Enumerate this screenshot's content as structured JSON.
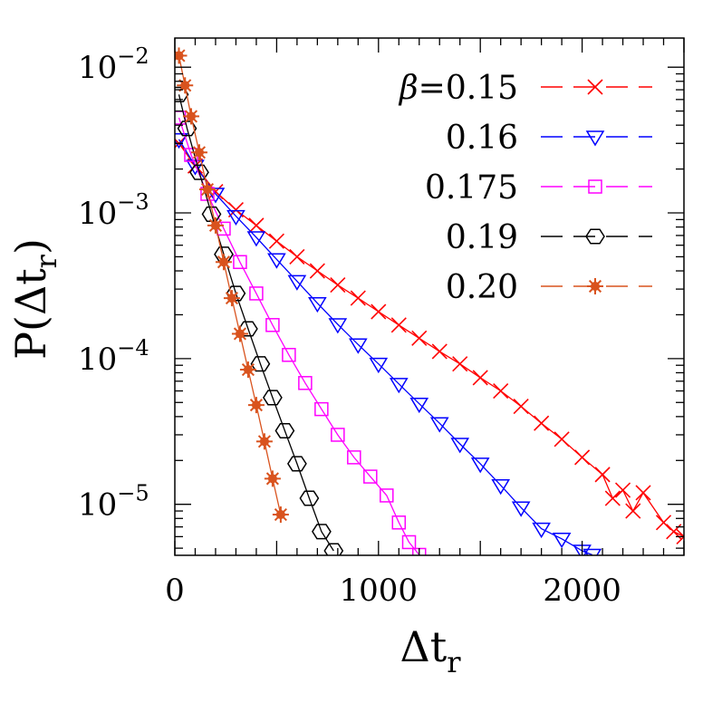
{
  "chart_data": {
    "type": "scatter",
    "xlabel": "Δt",
    "xlabel_sub": "r",
    "ylabel": "P(Δt",
    "ylabel_sub": "r",
    "ylabel_close": ")",
    "xlim": [
      0,
      2500
    ],
    "ylim_log10": [
      -5.35,
      -1.8
    ],
    "yscale": "log",
    "x_ticks": [
      {
        "value": 0,
        "label": "0"
      },
      {
        "value": 1000,
        "label": "1000"
      },
      {
        "value": 2000,
        "label": "2000"
      }
    ],
    "y_ticks": [
      {
        "exp": -2,
        "base": "10",
        "sup": "−2"
      },
      {
        "exp": -3,
        "base": "10",
        "sup": "−3"
      },
      {
        "exp": -4,
        "base": "10",
        "sup": "−4"
      },
      {
        "exp": -5,
        "base": "10",
        "sup": "−5"
      }
    ],
    "legend_position": "top-right",
    "series": [
      {
        "name": "β=0.15",
        "legend_prefix": "β",
        "legend_value": "=0.15",
        "color": "#ff0000",
        "marker": "x",
        "x": [
          20,
          100,
          200,
          300,
          400,
          500,
          600,
          700,
          800,
          900,
          1000,
          1100,
          1200,
          1300,
          1400,
          1500,
          1600,
          1700,
          1800,
          1900,
          2000,
          2100,
          2150,
          2200,
          2250,
          2300,
          2400,
          2450,
          2500
        ],
        "y": [
          0.003,
          0.0021,
          0.0014,
          0.00105,
          0.00082,
          0.00064,
          0.0005,
          0.0004,
          0.00032,
          0.00026,
          0.00021,
          0.00017,
          0.000138,
          0.000112,
          9.2e-05,
          7.4e-05,
          6e-05,
          4.7e-05,
          3.6e-05,
          2.8e-05,
          2.1e-05,
          1.6e-05,
          1.1e-05,
          1.25e-05,
          9e-06,
          1.2e-05,
          7.5e-06,
          6.5e-06,
          6e-06
        ]
      },
      {
        "name": "0.16",
        "legend_prefix": "",
        "legend_value": "0.16",
        "color": "#0000ff",
        "marker": "triangle-down",
        "x": [
          20,
          100,
          200,
          300,
          400,
          500,
          600,
          700,
          800,
          900,
          1000,
          1100,
          1200,
          1300,
          1400,
          1500,
          1600,
          1700,
          1800,
          1900,
          2000,
          2050
        ],
        "y": [
          0.0032,
          0.0021,
          0.00135,
          0.00095,
          0.00068,
          0.00048,
          0.00034,
          0.00024,
          0.000172,
          0.000125,
          9.2e-05,
          6.7e-05,
          4.9e-05,
          3.6e-05,
          2.6e-05,
          1.9e-05,
          1.35e-05,
          9.5e-06,
          6.8e-06,
          5.8e-06,
          4.8e-06,
          4.5e-06
        ]
      },
      {
        "name": "0.175",
        "legend_prefix": "",
        "legend_value": "0.175",
        "color": "#ff00ff",
        "marker": "square",
        "x": [
          20,
          80,
          160,
          240,
          320,
          400,
          480,
          560,
          640,
          720,
          800,
          880,
          960,
          1040,
          1100,
          1150,
          1200
        ],
        "y": [
          0.0045,
          0.0025,
          0.00135,
          0.00078,
          0.00046,
          0.00028,
          0.00017,
          0.000106,
          6.8e-05,
          4.5e-05,
          3e-05,
          2.1e-05,
          1.55e-05,
          1.15e-05,
          7.5e-06,
          5.5e-06,
          4.5e-06
        ]
      },
      {
        "name": "0.19",
        "legend_prefix": "",
        "legend_value": "0.19",
        "color": "#000000",
        "marker": "hexagon",
        "x": [
          20,
          60,
          120,
          180,
          240,
          300,
          360,
          420,
          480,
          540,
          600,
          660,
          720,
          780
        ],
        "y": [
          0.0065,
          0.0038,
          0.0019,
          0.00098,
          0.00052,
          0.00028,
          0.00016,
          9.2e-05,
          5.4e-05,
          3.2e-05,
          1.9e-05,
          1.1e-05,
          6.5e-06,
          4.8e-06
        ]
      },
      {
        "name": "0.20",
        "legend_prefix": "",
        "legend_value": "0.20",
        "color": "#d9531e",
        "marker": "star",
        "x": [
          20,
          50,
          80,
          120,
          160,
          200,
          240,
          280,
          320,
          360,
          400,
          440,
          480,
          520
        ],
        "y": [
          0.012,
          0.0075,
          0.0046,
          0.0026,
          0.00145,
          0.00082,
          0.00046,
          0.00026,
          0.000148,
          8.4e-05,
          4.8e-05,
          2.7e-05,
          1.5e-05,
          8.5e-06
        ]
      }
    ]
  }
}
